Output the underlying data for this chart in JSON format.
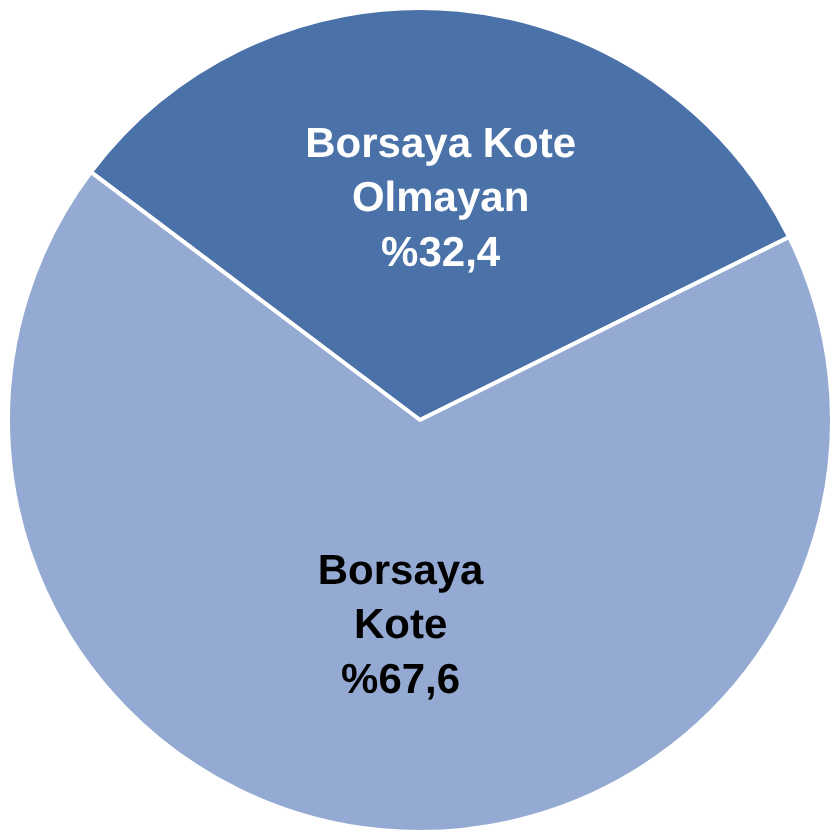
{
  "chart_data": {
    "type": "pie",
    "categories": [
      "Borsaya Kote Olmayan",
      "Borsaya Kote"
    ],
    "values": [
      32.4,
      67.6
    ],
    "value_labels": [
      "%32,4",
      "%67,6"
    ],
    "colors": [
      "#4a72a8",
      "#95aad3"
    ],
    "legend": false
  }
}
